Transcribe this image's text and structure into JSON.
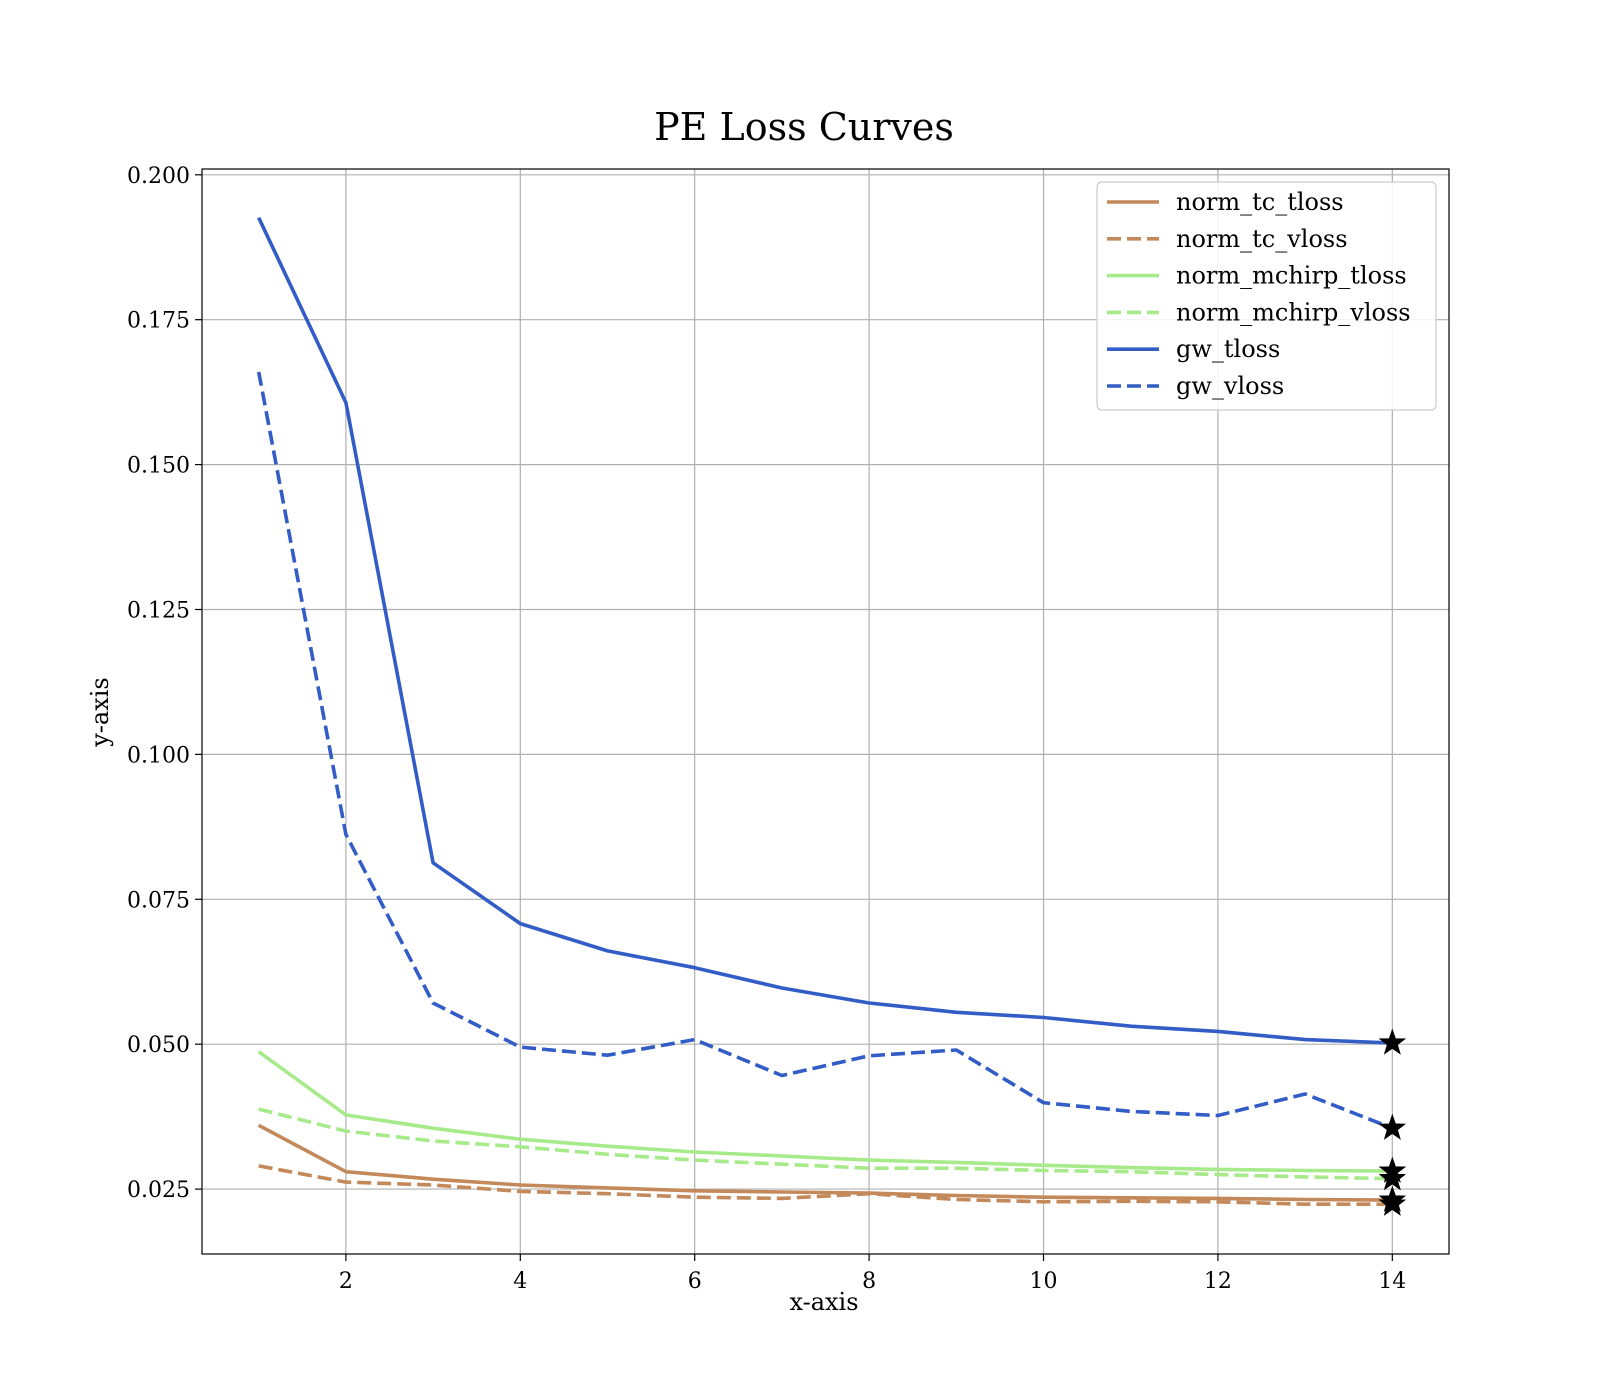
{
  "chart_data": {
    "type": "line",
    "title": "PE Loss Curves",
    "xlabel": "x-axis",
    "ylabel": "y-axis",
    "xlim": [
      0.35,
      14.65
    ],
    "ylim": [
      0.0138,
      0.201
    ],
    "xticks": [
      2,
      4,
      6,
      8,
      10,
      12,
      14
    ],
    "yticks": [
      0.025,
      0.05,
      0.075,
      0.1,
      0.125,
      0.15,
      0.175,
      0.2
    ],
    "x_tick_labels": [
      "2",
      "4",
      "6",
      "8",
      "10",
      "12",
      "14"
    ],
    "y_tick_labels": [
      "0.025",
      "0.050",
      "0.075",
      "0.100",
      "0.125",
      "0.150",
      "0.175",
      "0.200"
    ],
    "grid": true,
    "legend_position": "top-right",
    "x": [
      1,
      2,
      3,
      4,
      5,
      6,
      7,
      8,
      9,
      10,
      11,
      12,
      13,
      14
    ],
    "series": [
      {
        "name": "norm_tc_tloss",
        "color": "#c4895a",
        "dash": "solid",
        "values": [
          0.036,
          0.028,
          0.0267,
          0.0257,
          0.0252,
          0.0247,
          0.0245,
          0.0243,
          0.0239,
          0.0236,
          0.0235,
          0.0234,
          0.0232,
          0.0231
        ]
      },
      {
        "name": "norm_tc_vloss",
        "color": "#c4895a",
        "dash": "dashed",
        "values": [
          0.029,
          0.0262,
          0.0257,
          0.0246,
          0.0242,
          0.0236,
          0.0234,
          0.0242,
          0.0232,
          0.0228,
          0.0229,
          0.0228,
          0.0224,
          0.0224
        ]
      },
      {
        "name": "norm_mchirp_tloss",
        "color": "#a6ea8a",
        "dash": "solid",
        "values": [
          0.0487,
          0.0378,
          0.0355,
          0.0336,
          0.0324,
          0.0314,
          0.0307,
          0.03,
          0.0296,
          0.0291,
          0.0287,
          0.0284,
          0.0282,
          0.0281
        ]
      },
      {
        "name": "norm_mchirp_vloss",
        "color": "#a6ea8a",
        "dash": "dashed",
        "values": [
          0.0388,
          0.035,
          0.0333,
          0.0323,
          0.031,
          0.03,
          0.0293,
          0.0286,
          0.0286,
          0.0282,
          0.028,
          0.0275,
          0.0271,
          0.0268
        ]
      },
      {
        "name": "gw_tloss",
        "color": "#325cc6",
        "dash": "solid",
        "values": [
          0.1926,
          0.1607,
          0.0813,
          0.0708,
          0.0661,
          0.0632,
          0.0597,
          0.0571,
          0.0555,
          0.0546,
          0.0531,
          0.0522,
          0.0508,
          0.0502
        ]
      },
      {
        "name": "gw_vloss",
        "color": "#325cc6",
        "dash": "dashed",
        "values": [
          0.166,
          0.0862,
          0.0571,
          0.0495,
          0.0481,
          0.0508,
          0.0446,
          0.048,
          0.049,
          0.0399,
          0.0384,
          0.0377,
          0.0414,
          0.0355
        ]
      }
    ],
    "markers": {
      "shape": "star",
      "color": "#000000",
      "note_points": [
        {
          "x": 14,
          "y": 0.0502
        },
        {
          "x": 14,
          "y": 0.0355
        },
        {
          "x": 14,
          "y": 0.0281
        },
        {
          "x": 14,
          "y": 0.0268
        },
        {
          "x": 14,
          "y": 0.0231
        },
        {
          "x": 14,
          "y": 0.0224
        }
      ]
    }
  }
}
